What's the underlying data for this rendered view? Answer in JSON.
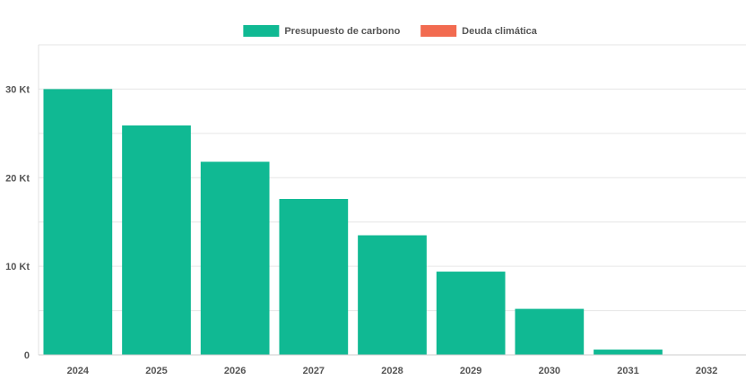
{
  "chart_data": {
    "type": "bar",
    "categories": [
      "2024",
      "2025",
      "2026",
      "2027",
      "2028",
      "2029",
      "2030",
      "2031",
      "2032"
    ],
    "series": [
      {
        "name": "Presupuesto de carbono",
        "color": "#10b993",
        "values": [
          30000,
          25900,
          21800,
          17600,
          13500,
          9400,
          5200,
          600,
          0
        ]
      },
      {
        "name": "Deuda climática",
        "color": "#f26b50",
        "values": [
          0,
          0,
          0,
          0,
          0,
          0,
          0,
          0,
          0
        ]
      }
    ],
    "y_ticks": [
      {
        "value": 0,
        "label": "0"
      },
      {
        "value": 10000,
        "label": "10 Kt"
      },
      {
        "value": 20000,
        "label": "20 Kt"
      },
      {
        "value": 30000,
        "label": "30 Kt"
      }
    ],
    "ylim": [
      0,
      35000
    ],
    "gridlines": true,
    "legend_position": "top-center",
    "title": "",
    "xlabel": "",
    "ylabel": ""
  }
}
